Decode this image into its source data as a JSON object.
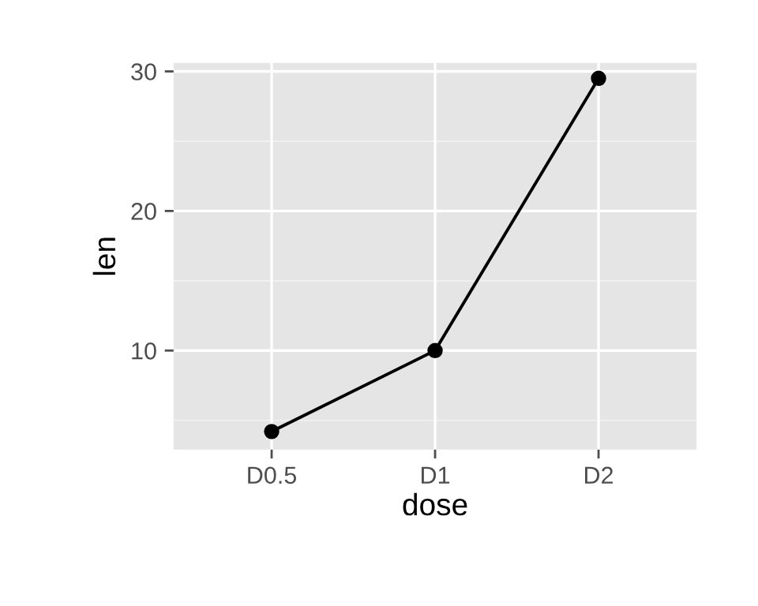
{
  "chart_data": {
    "type": "line",
    "xlabel": "dose",
    "ylabel": "len",
    "categories": [
      "D0.5",
      "D1",
      "D2"
    ],
    "series": [
      {
        "color": "#000000",
        "values": [
          4.2,
          10.0,
          29.5
        ]
      }
    ],
    "ylim": [
      2.9,
      30.6
    ],
    "yticks": [
      10,
      20,
      30
    ],
    "grid": true,
    "marker": "circle",
    "line_style": "solid"
  }
}
